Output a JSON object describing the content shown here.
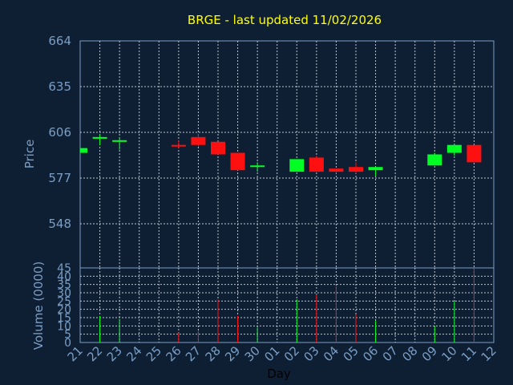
{
  "chart_data": {
    "type": "candlestick",
    "title": "BRGE - last updated 11/02/2026",
    "xlabel": "Day",
    "ylabel": "Price",
    "volume_label": "Volume (0000)",
    "y_ticks": [
      548,
      577,
      606,
      635,
      664
    ],
    "ylim": [
      520,
      664
    ],
    "volume_ticks": [
      0,
      5,
      10,
      15,
      20,
      25,
      30,
      35,
      40,
      45
    ],
    "volume_lim": [
      0,
      45
    ],
    "grid": true,
    "colors": {
      "up": "#00ff22",
      "down": "#ff1010",
      "title": "#ffff00",
      "axis": "#7a9ec5",
      "background": "#0f1f33"
    },
    "x_labels": [
      "21",
      "22",
      "23",
      "24",
      "25",
      "26",
      "27",
      "28",
      "29",
      "30",
      "01",
      "02",
      "03",
      "04",
      "05",
      "06",
      "07",
      "08",
      "09",
      "10",
      "11",
      "12"
    ],
    "candles": [
      {
        "day": "21",
        "open": 593,
        "close": 596,
        "high": 596,
        "low": 593,
        "volume": 0
      },
      {
        "day": "22",
        "open": 602,
        "close": 603,
        "high": 605,
        "low": 598,
        "volume": 16
      },
      {
        "day": "23",
        "open": 600,
        "close": 601,
        "high": 603,
        "low": 595,
        "volume": 14
      },
      {
        "day": "26",
        "open": 598,
        "close": 597,
        "high": 601,
        "low": 596,
        "volume": 6
      },
      {
        "day": "27",
        "open": 603,
        "close": 598,
        "high": 605,
        "low": 597,
        "volume": 7
      },
      {
        "day": "28",
        "open": 600,
        "close": 592,
        "high": 600,
        "low": 592,
        "volume": 26
      },
      {
        "day": "29",
        "open": 593,
        "close": 582,
        "high": 593,
        "low": 582,
        "volume": 16
      },
      {
        "day": "30",
        "open": 584,
        "close": 585,
        "high": 587,
        "low": 581,
        "volume": 9
      },
      {
        "day": "02",
        "open": 581,
        "close": 589,
        "high": 589,
        "low": 581,
        "volume": 26
      },
      {
        "day": "03",
        "open": 590,
        "close": 581,
        "high": 591,
        "low": 581,
        "volume": 29
      },
      {
        "day": "04",
        "open": 583,
        "close": 581,
        "high": 583,
        "low": 580,
        "volume": 34
      },
      {
        "day": "05",
        "open": 584,
        "close": 581,
        "high": 587,
        "low": 580,
        "volume": 17
      },
      {
        "day": "06",
        "open": 582,
        "close": 584,
        "high": 584,
        "low": 578,
        "volume": 13
      },
      {
        "day": "09",
        "open": 585,
        "close": 592,
        "high": 593,
        "low": 585,
        "volume": 10
      },
      {
        "day": "10",
        "open": 593,
        "close": 598,
        "high": 598,
        "low": 591,
        "volume": 25
      },
      {
        "day": "11",
        "open": 598,
        "close": 587,
        "high": 598,
        "low": 587,
        "volume": 45
      }
    ]
  }
}
